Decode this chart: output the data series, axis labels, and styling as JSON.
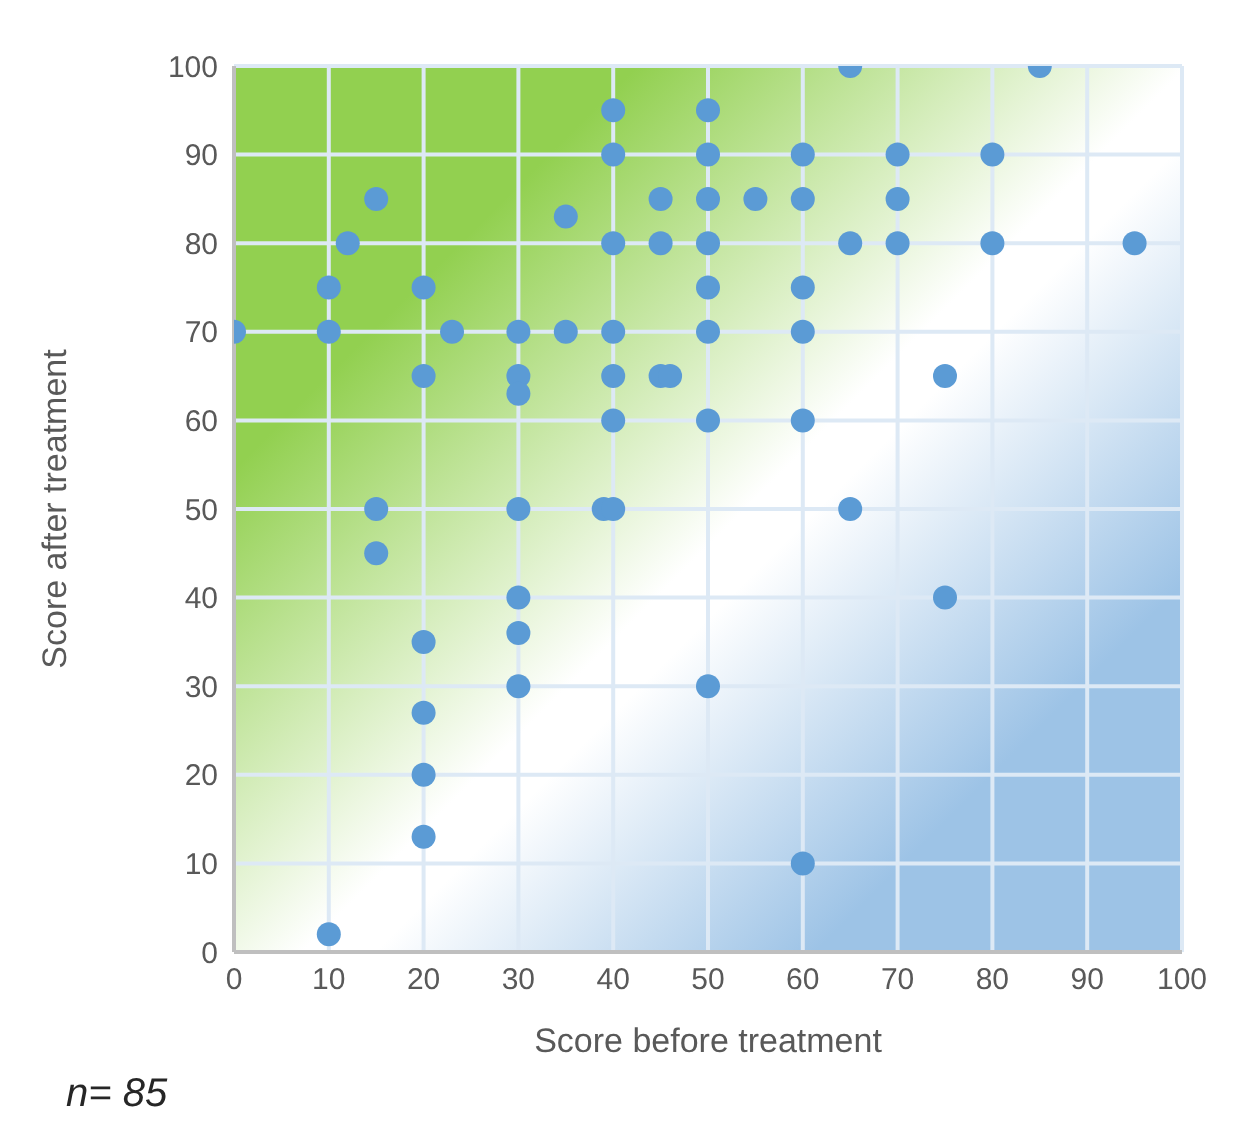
{
  "chart_data": {
    "type": "scatter",
    "xlabel": "Score before treatment",
    "ylabel": "Score after treatment",
    "annotations": [
      "n= 85"
    ],
    "x": [
      0,
      10,
      10,
      10,
      12,
      15,
      15,
      15,
      20,
      20,
      20,
      20,
      20,
      20,
      23,
      30,
      30,
      30,
      30,
      30,
      30,
      30,
      35,
      35,
      39,
      40,
      40,
      40,
      40,
      40,
      40,
      40,
      45,
      45,
      45,
      46,
      50,
      50,
      50,
      50,
      50,
      50,
      50,
      50,
      55,
      60,
      60,
      60,
      60,
      60,
      60,
      65,
      65,
      65,
      70,
      70,
      70,
      75,
      75,
      80,
      80,
      85,
      95
    ],
    "series": [
      {
        "color": "#5b9bd5",
        "values": [
          70,
          75,
          70,
          2,
          80,
          85,
          50,
          45,
          75,
          65,
          35,
          27,
          20,
          13,
          70,
          70,
          65,
          63,
          50,
          40,
          36,
          30,
          83,
          70,
          50,
          50,
          95,
          90,
          80,
          70,
          65,
          60,
          85,
          80,
          65,
          65,
          95,
          90,
          85,
          80,
          75,
          70,
          60,
          30,
          85,
          90,
          85,
          75,
          70,
          60,
          10,
          100,
          80,
          50,
          90,
          85,
          80,
          65,
          40,
          90,
          80,
          100,
          80
        ]
      }
    ],
    "xlim": [
      0,
      100
    ],
    "xticks": [
      0,
      10,
      20,
      30,
      40,
      50,
      60,
      70,
      80,
      90,
      100
    ],
    "ylim": [
      0,
      100
    ],
    "yticks": [
      0,
      10,
      20,
      30,
      40,
      50,
      60,
      70,
      80,
      90,
      100
    ],
    "grid": true,
    "marker": "circle"
  }
}
